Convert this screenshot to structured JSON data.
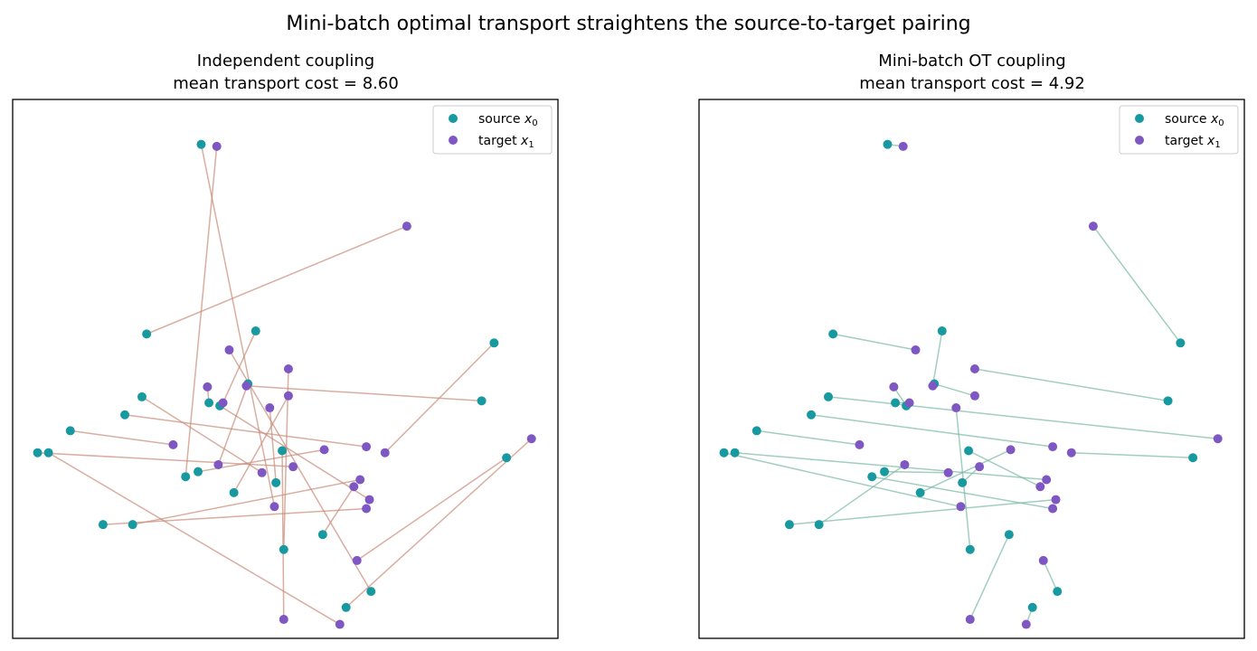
{
  "figure": {
    "suptitle": "Mini-batch optimal transport straightens the source-to-target pairing"
  },
  "colors": {
    "source": "#17999f",
    "target": "#7e57c2",
    "independent_line": "#c88c77",
    "ot_line": "#79b9a2",
    "axes": "#000000"
  },
  "chart_data": [
    {
      "type": "scatter",
      "title_line1": "Independent coupling",
      "title_line2": "mean transport cost = 8.60",
      "legend": {
        "placement": "top-right",
        "source_label": "source",
        "source_sym": "x",
        "source_sub": "0",
        "target_label": "target",
        "target_sym": "x",
        "target_sub": "1"
      },
      "grid": false,
      "ticks": false,
      "source": [
        [
          -0.89,
          3.65
        ],
        [
          -0.54,
          1.78
        ],
        [
          -0.59,
          1.25
        ],
        [
          -0.77,
          1.03
        ],
        [
          -1.73,
          0.78
        ],
        [
          -0.91,
          0.37
        ],
        [
          -0.37,
          0.58
        ],
        [
          -0.41,
          0.26
        ],
        [
          -0.68,
          0.16
        ],
        [
          -1.52,
          -0.16
        ],
        [
          -1.33,
          -0.16
        ],
        [
          -0.84,
          1.06
        ],
        [
          -0.36,
          -0.41
        ],
        [
          -1.24,
          1.75
        ],
        [
          0.99,
          1.66
        ],
        [
          -0.11,
          -0.26
        ],
        [
          -1.38,
          0.94
        ],
        [
          -1.27,
          1.12
        ],
        [
          0.91,
          1.08
        ],
        [
          1.07,
          0.51
        ],
        [
          -1.94,
          0.56
        ],
        [
          -1.87,
          0.56
        ],
        [
          -0.99,
          0.32
        ],
        [
          0.2,
          -0.83
        ],
        [
          0.04,
          -0.99
        ]
      ],
      "target": [
        [
          -0.79,
          3.63
        ],
        [
          -0.71,
          1.59
        ],
        [
          -0.33,
          1.4
        ],
        [
          -0.85,
          1.22
        ],
        [
          0.09,
          0.22
        ],
        [
          0.17,
          0.62
        ],
        [
          -0.42,
          0.02
        ],
        [
          0.43,
          2.83
        ],
        [
          -0.45,
          1.01
        ],
        [
          -0.36,
          -1.11
        ],
        [
          0.11,
          -0.52
        ],
        [
          -0.1,
          0.59
        ],
        [
          -0.78,
          0.44
        ],
        [
          -0.5,
          0.36
        ],
        [
          0.0,
          -1.16
        ],
        [
          -0.6,
          1.23
        ],
        [
          0.29,
          0.56
        ],
        [
          -0.75,
          1.06
        ],
        [
          0.13,
          0.29
        ],
        [
          -0.33,
          1.13
        ],
        [
          -1.07,
          0.64
        ],
        [
          0.17,
          0.0
        ],
        [
          0.19,
          0.09
        ],
        [
          -0.3,
          0.42
        ],
        [
          1.23,
          0.7
        ]
      ],
      "pairs": [
        [
          0,
          6
        ],
        [
          1,
          17
        ],
        [
          2,
          12
        ],
        [
          3,
          22
        ],
        [
          4,
          20
        ],
        [
          5,
          11
        ],
        [
          6,
          9
        ],
        [
          7,
          8
        ],
        [
          8,
          19
        ],
        [
          9,
          21
        ],
        [
          10,
          18
        ],
        [
          11,
          3
        ],
        [
          12,
          2
        ],
        [
          13,
          7
        ],
        [
          14,
          16
        ],
        [
          15,
          4
        ],
        [
          16,
          5
        ],
        [
          17,
          13
        ],
        [
          18,
          15
        ],
        [
          19,
          10
        ],
        [
          20,
          23
        ],
        [
          21,
          14
        ],
        [
          22,
          0
        ],
        [
          23,
          1
        ],
        [
          24,
          24
        ]
      ],
      "xlim": [
        -2.1,
        1.4
      ],
      "ylim": [
        -1.3,
        4.1
      ]
    },
    {
      "type": "scatter",
      "title_line1": "Mini-batch OT coupling",
      "title_line2": "mean transport cost = 4.92",
      "legend": {
        "placement": "top-right",
        "source_label": "source",
        "source_sym": "x",
        "source_sub": "0",
        "target_label": "target",
        "target_sym": "x",
        "target_sub": "1"
      },
      "grid": false,
      "ticks": false,
      "source": [
        [
          -0.89,
          3.65
        ],
        [
          -0.54,
          1.78
        ],
        [
          -0.59,
          1.25
        ],
        [
          -0.77,
          1.03
        ],
        [
          -1.73,
          0.78
        ],
        [
          -0.91,
          0.37
        ],
        [
          -0.37,
          0.58
        ],
        [
          -0.41,
          0.26
        ],
        [
          -0.68,
          0.16
        ],
        [
          -1.52,
          -0.16
        ],
        [
          -1.33,
          -0.16
        ],
        [
          -0.84,
          1.06
        ],
        [
          -0.36,
          -0.41
        ],
        [
          -1.24,
          1.75
        ],
        [
          0.99,
          1.66
        ],
        [
          -0.11,
          -0.26
        ],
        [
          -1.38,
          0.94
        ],
        [
          -1.27,
          1.12
        ],
        [
          0.91,
          1.08
        ],
        [
          1.07,
          0.51
        ],
        [
          -1.94,
          0.56
        ],
        [
          -1.87,
          0.56
        ],
        [
          -0.99,
          0.32
        ],
        [
          0.2,
          -0.83
        ],
        [
          0.04,
          -0.99
        ]
      ],
      "target": [
        [
          -0.79,
          3.63
        ],
        [
          -0.71,
          1.59
        ],
        [
          -0.33,
          1.4
        ],
        [
          -0.85,
          1.22
        ],
        [
          0.09,
          0.22
        ],
        [
          0.17,
          0.62
        ],
        [
          -0.42,
          0.02
        ],
        [
          0.43,
          2.83
        ],
        [
          -0.45,
          1.01
        ],
        [
          -0.36,
          -1.11
        ],
        [
          0.11,
          -0.52
        ],
        [
          -0.1,
          0.59
        ],
        [
          -0.78,
          0.44
        ],
        [
          -0.5,
          0.36
        ],
        [
          0.0,
          -1.16
        ],
        [
          -0.6,
          1.23
        ],
        [
          0.29,
          0.56
        ],
        [
          -0.75,
          1.06
        ],
        [
          0.13,
          0.29
        ],
        [
          -0.33,
          1.13
        ],
        [
          -1.07,
          0.64
        ],
        [
          0.17,
          0.0
        ],
        [
          0.19,
          0.09
        ],
        [
          -0.3,
          0.42
        ],
        [
          1.23,
          0.7
        ]
      ],
      "pairs": [
        [
          0,
          0
        ],
        [
          1,
          15
        ],
        [
          2,
          19
        ],
        [
          3,
          3
        ],
        [
          4,
          20
        ],
        [
          5,
          13
        ],
        [
          6,
          4
        ],
        [
          7,
          23
        ],
        [
          8,
          11
        ],
        [
          9,
          22
        ],
        [
          10,
          12
        ],
        [
          11,
          17
        ],
        [
          12,
          8
        ],
        [
          13,
          1
        ],
        [
          14,
          7
        ],
        [
          15,
          9
        ],
        [
          16,
          5
        ],
        [
          17,
          24
        ],
        [
          18,
          2
        ],
        [
          19,
          16
        ],
        [
          20,
          6
        ],
        [
          21,
          18
        ],
        [
          22,
          21
        ],
        [
          23,
          10
        ],
        [
          24,
          14
        ]
      ],
      "xlim": [
        -2.1,
        1.4
      ],
      "ylim": [
        -1.3,
        4.1
      ]
    }
  ]
}
